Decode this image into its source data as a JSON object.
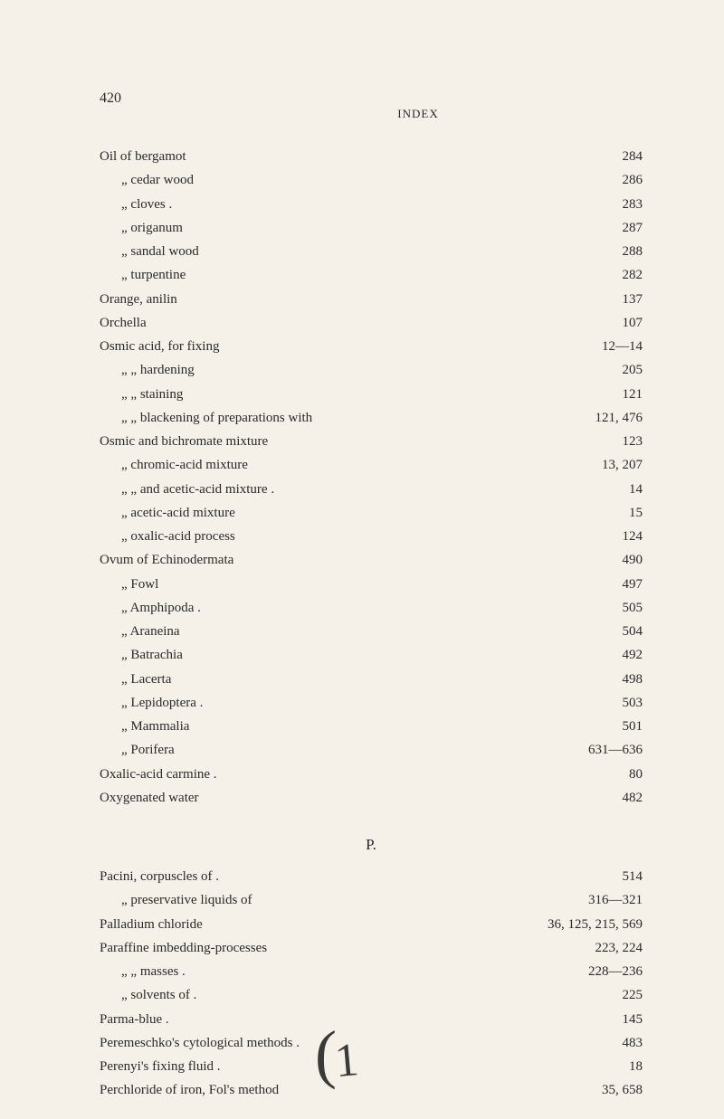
{
  "header": {
    "page_number": "420",
    "title": "INDEX"
  },
  "entries": [
    {
      "label": "Oil of bergamot",
      "page": "284",
      "indent": 0
    },
    {
      "label": "„    cedar wood",
      "page": "286",
      "indent": 1
    },
    {
      "label": "„    cloves .",
      "page": "283",
      "indent": 1
    },
    {
      "label": "„    origanum",
      "page": "287",
      "indent": 1
    },
    {
      "label": "„    sandal wood",
      "page": "288",
      "indent": 1
    },
    {
      "label": "„    turpentine",
      "page": "282",
      "indent": 1
    },
    {
      "label": "Orange, anilin",
      "page": "137",
      "indent": 0
    },
    {
      "label": "Orchella",
      "page": "107",
      "indent": 0
    },
    {
      "label": "Osmic acid, for fixing",
      "page": "12—14",
      "indent": 0
    },
    {
      "label": "„        „        hardening",
      "page": "205",
      "indent": 1
    },
    {
      "label": "„        „        staining",
      "page": "121",
      "indent": 1
    },
    {
      "label": "„        „        blackening of preparations with",
      "page": "121, 476",
      "indent": 1
    },
    {
      "label": "Osmic and bichromate mixture",
      "page": "123",
      "indent": 0
    },
    {
      "label": "„        chromic-acid mixture",
      "page": "13, 207",
      "indent": 1
    },
    {
      "label": "„                „    and acetic-acid mixture .",
      "page": "14",
      "indent": 1
    },
    {
      "label": "„        acetic-acid mixture",
      "page": "15",
      "indent": 1
    },
    {
      "label": "„        oxalic-acid process",
      "page": "124",
      "indent": 1
    },
    {
      "label": "Ovum of Echinodermata",
      "page": "490",
      "indent": 0
    },
    {
      "label": "„        Fowl",
      "page": "497",
      "indent": 1
    },
    {
      "label": "„        Amphipoda .",
      "page": "505",
      "indent": 1
    },
    {
      "label": "„        Araneina",
      "page": "504",
      "indent": 1
    },
    {
      "label": "„        Batrachia",
      "page": "492",
      "indent": 1
    },
    {
      "label": "„        Lacerta",
      "page": "498",
      "indent": 1
    },
    {
      "label": "„        Lepidoptera .",
      "page": "503",
      "indent": 1
    },
    {
      "label": "„        Mammalia",
      "page": "501",
      "indent": 1
    },
    {
      "label": "„        Porifera",
      "page": "631—636",
      "indent": 1
    },
    {
      "label": "Oxalic-acid carmine .",
      "page": "80",
      "indent": 0
    },
    {
      "label": "Oxygenated water",
      "page": "482",
      "indent": 0
    }
  ],
  "section_letter": "P.",
  "entries_p": [
    {
      "label": "Pacini, corpuscles of .",
      "page": "514",
      "indent": 0
    },
    {
      "label": "„    preservative liquids of",
      "page": "316—321",
      "indent": 1
    },
    {
      "label": "Palladium chloride",
      "page": "36, 125, 215, 569",
      "indent": 0
    },
    {
      "label": "Paraffine imbedding-processes",
      "page": "223, 224",
      "indent": 0
    },
    {
      "label": "„            „        masses .",
      "page": "228—236",
      "indent": 1
    },
    {
      "label": "„    solvents of .",
      "page": "225",
      "indent": 1
    },
    {
      "label": "Parma-blue .",
      "page": "145",
      "indent": 0
    },
    {
      "label": "Peremeschko's cytological methods .",
      "page": "483",
      "indent": 0
    },
    {
      "label": "Perenyi's fixing fluid .",
      "page": "18",
      "indent": 0
    },
    {
      "label": "Perchloride of iron, Fol's method",
      "page": "35, 658",
      "indent": 0
    }
  ],
  "glyph": {
    "paren": "(",
    "letter": "1"
  }
}
